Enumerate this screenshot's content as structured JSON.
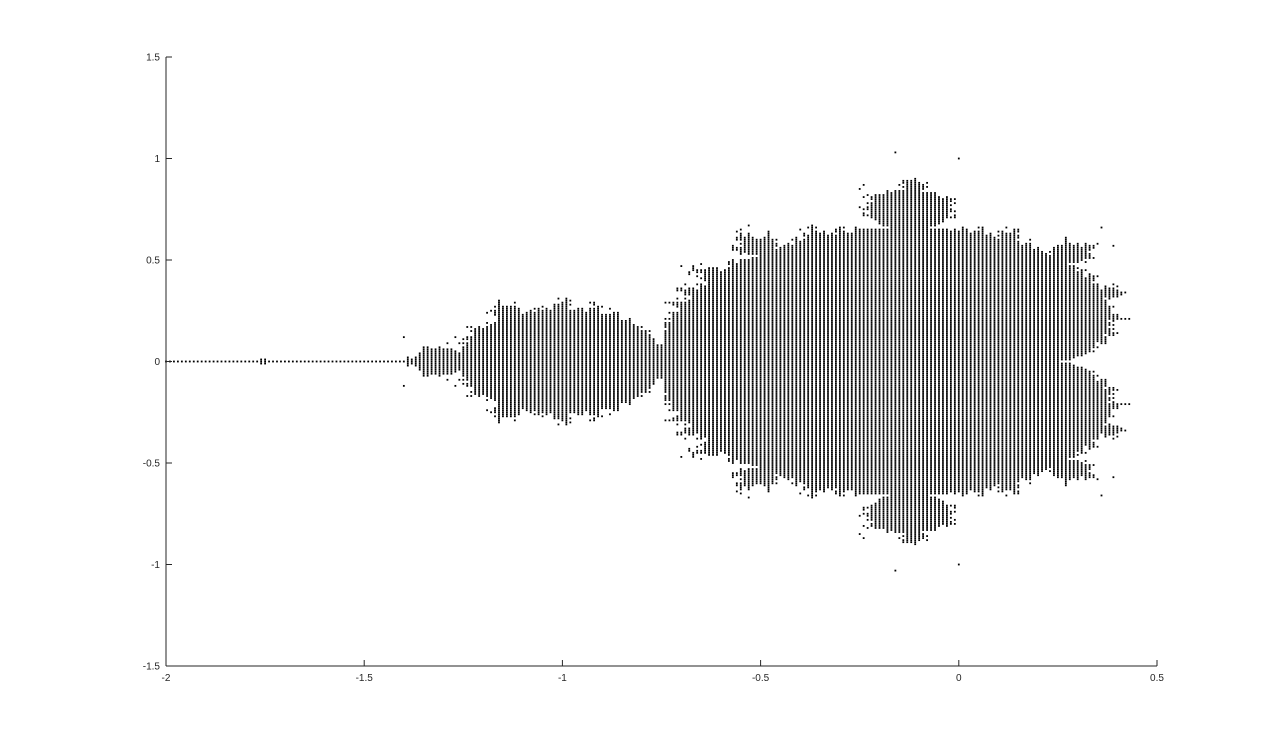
{
  "chart_data": {
    "type": "scatter",
    "description_source": "Mandelbrot set membership plot",
    "title": "",
    "xlabel": "",
    "ylabel": "",
    "xlim": [
      -2,
      0.5
    ],
    "ylim": [
      -1.5,
      1.5
    ],
    "x_ticks": [
      -2,
      -1.5,
      -1,
      -0.5,
      0,
      0.5
    ],
    "x_tick_labels": [
      "-2",
      "-1.5",
      "-1",
      "-0.5",
      "0",
      "0.5"
    ],
    "y_ticks": [
      -1.5,
      -1,
      -0.5,
      0,
      0.5,
      1,
      1.5
    ],
    "y_tick_labels": [
      "-1.5",
      "-1",
      "-0.5",
      "0",
      "0.5",
      "1",
      "1.5"
    ],
    "grid": false,
    "legend": "none",
    "marker_color": "#000000",
    "series": [
      {
        "points": "all grid points c with |z_n| bounded under z -> z^2 + c",
        "grid_step_x": 0.01,
        "grid_step_y": 0.01,
        "max_iterations": 40
      }
    ]
  }
}
